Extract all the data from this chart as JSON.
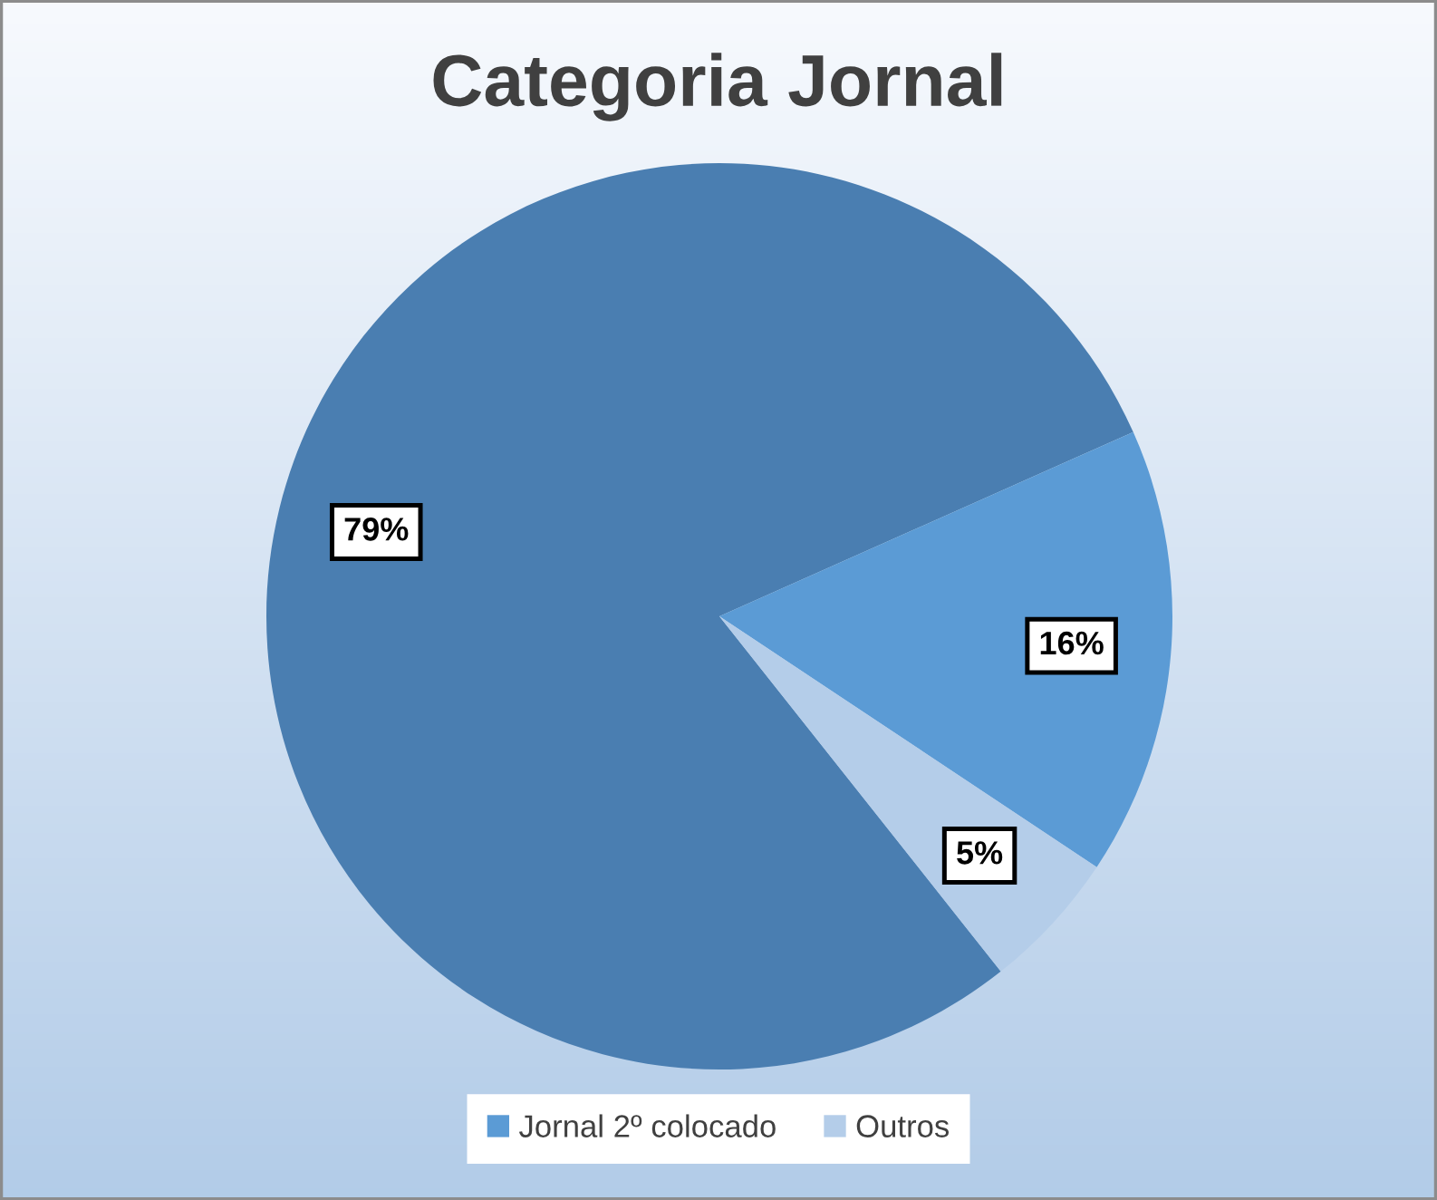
{
  "chart_data": {
    "type": "pie",
    "title": "Categoria Jornal",
    "categories": [
      null,
      "Jornal 2º colocado",
      "Outros"
    ],
    "values": [
      79,
      16,
      5
    ],
    "colors": [
      "#4a7eb1",
      "#5b9bd5",
      "#b4cde9"
    ],
    "value_labels": [
      "79%",
      "16%",
      "5%"
    ],
    "legend": "bottom"
  }
}
